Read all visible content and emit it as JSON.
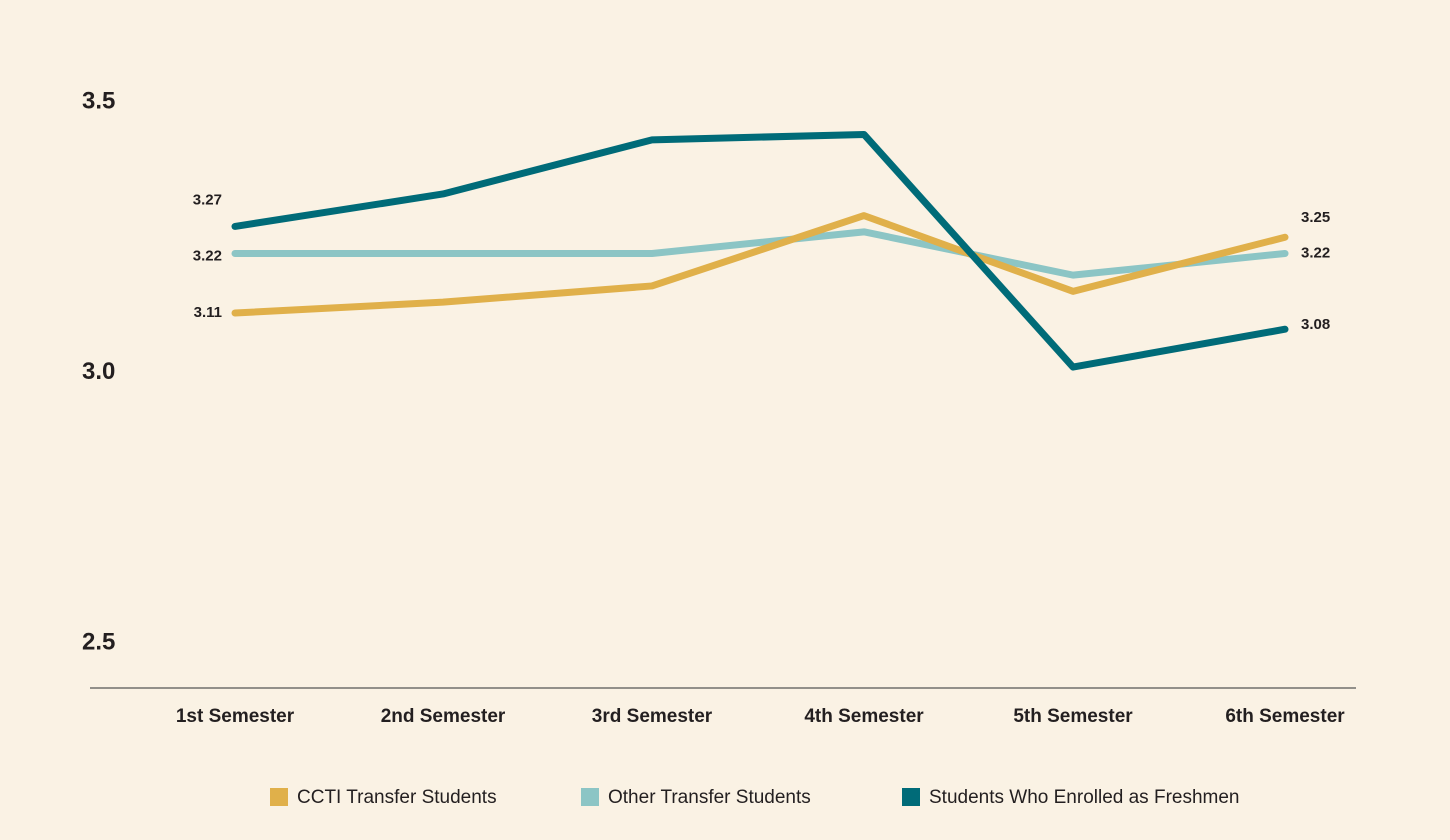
{
  "chart_data": {
    "type": "line",
    "categories": [
      "1st Semester",
      "2nd Semester",
      "3rd Semester",
      "4th Semester",
      "5th Semester",
      "6th Semester"
    ],
    "series": [
      {
        "name": "CCTI Transfer Students",
        "color": "#e0b04a",
        "values": [
          3.11,
          3.13,
          3.16,
          3.29,
          3.15,
          3.25
        ]
      },
      {
        "name": "Other Transfer Students",
        "color": "#8cc5c5",
        "values": [
          3.22,
          3.22,
          3.22,
          3.26,
          3.18,
          3.22
        ]
      },
      {
        "name": "Students Who Enrolled as Freshmen",
        "color": "#006b78",
        "values": [
          3.27,
          3.33,
          3.43,
          3.44,
          3.01,
          3.08
        ]
      }
    ],
    "ylim": [
      2.5,
      3.5
    ],
    "yticks": [
      2.5,
      {
        "value": 3,
        "label": "3.0"
      },
      3.5
    ],
    "grid": false
  }
}
